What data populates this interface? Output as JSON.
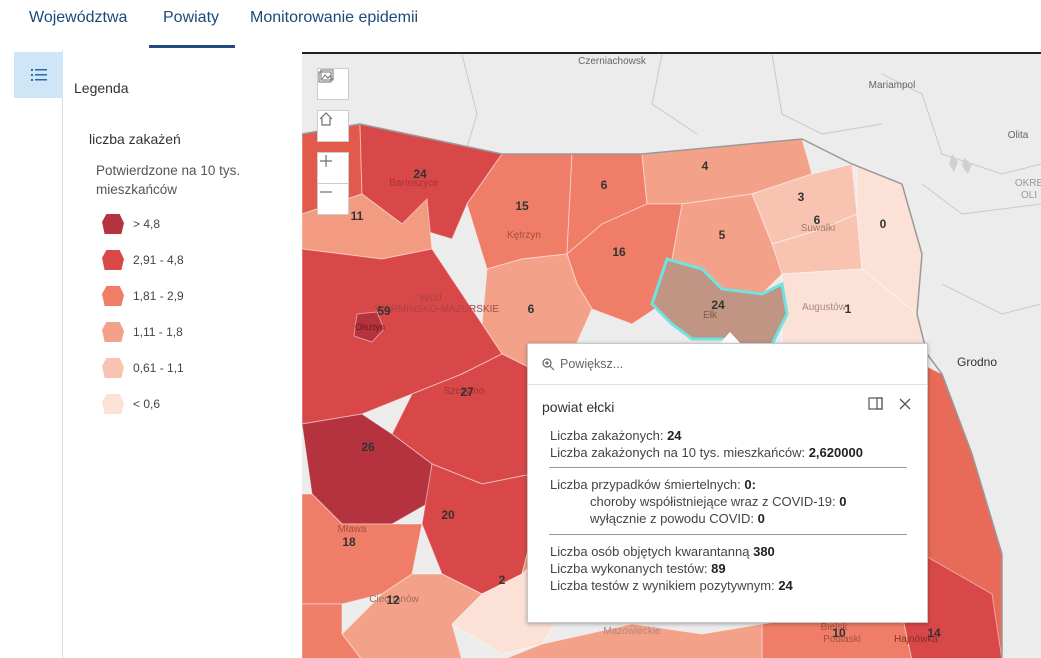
{
  "tabs": [
    {
      "label": "Województwa"
    },
    {
      "label": "Powiaty"
    },
    {
      "label": "Monitorowanie epidemii"
    }
  ],
  "legend": {
    "title": "Legenda",
    "layer": "liczba zakażeń",
    "field": "Potwierdzone na 10 tys. mieszkańców",
    "classes": [
      {
        "label": "> 4,8",
        "color": "#b5333f"
      },
      {
        "label": "2,91 - 4,8",
        "color": "#d94848"
      },
      {
        "label": "1,81 - 2,9",
        "color": "#ef7d68"
      },
      {
        "label": "1,11 - 1,8",
        "color": "#f4a189"
      },
      {
        "label": "0,61 - 1,1",
        "color": "#f8c4b1"
      },
      {
        "label": "< 0,6",
        "color": "#fbe1d6"
      }
    ]
  },
  "map": {
    "labels": {
      "czerniachowsk": "Czerniachowsk",
      "mariampol": "Mariampol",
      "olita": "Olita",
      "okreg": "OKRĘ",
      "okreg2": "OLI",
      "grodno": "Grodno",
      "bartoszyce": "Bartoszyce",
      "ketrzyn": "Kętrzyn",
      "suwalki": "Suwałki",
      "augustow": "Augustów",
      "woj": "WOJ.",
      "woj2": "WARMIŃSKO-MAZURSKIE",
      "olsztyn": "Olsztyn",
      "szczytno": "Szczytno",
      "elk": "Ełk",
      "mlawa": "Mława",
      "ciechanow": "Ciechanów",
      "mazowieckie": "Mazowieckie",
      "bielsk": "Bielsk",
      "podlaski": "Podlaski",
      "hajnowka": "Hajnówka"
    },
    "counts": {
      "c24a": "24",
      "c4": "4",
      "c6a": "6",
      "c3": "3",
      "c6b": "6",
      "c0": "0",
      "c11": "11",
      "c15": "15",
      "c16": "16",
      "c5": "5",
      "c24b": "24",
      "c1": "1",
      "c6c": "6",
      "c59": "59",
      "c27": "27",
      "c26": "26",
      "c20": "20",
      "c18": "18",
      "c2": "2",
      "c12": "12",
      "c10": "10",
      "c14": "14"
    },
    "selected_color": "#6fe3e0"
  },
  "popup": {
    "zoom_label": "Powiększ...",
    "title": "powiat ełcki",
    "cases_label": "Liczba zakażonych:",
    "cases_value": "24",
    "rate_label": "Liczba zakażonych na 10 tys. mieszkańców:",
    "rate_value": "2,620000",
    "deaths_label": "Liczba przypadków śmiertelnych:",
    "deaths_value": "0:",
    "comorb_label": "choroby współistniejące wraz z COVID-19:",
    "comorb_value": "0",
    "covid_only_label": "wyłącznie z powodu COVID:",
    "covid_only_value": "0",
    "quarantine_label": "Liczba osób objętych kwarantanną",
    "quarantine_value": "380",
    "tests_label": "Liczba wykonanych testów:",
    "tests_value": "89",
    "positive_label": "Liczba testów z wynikiem pozytywnym:",
    "positive_value": "24"
  }
}
